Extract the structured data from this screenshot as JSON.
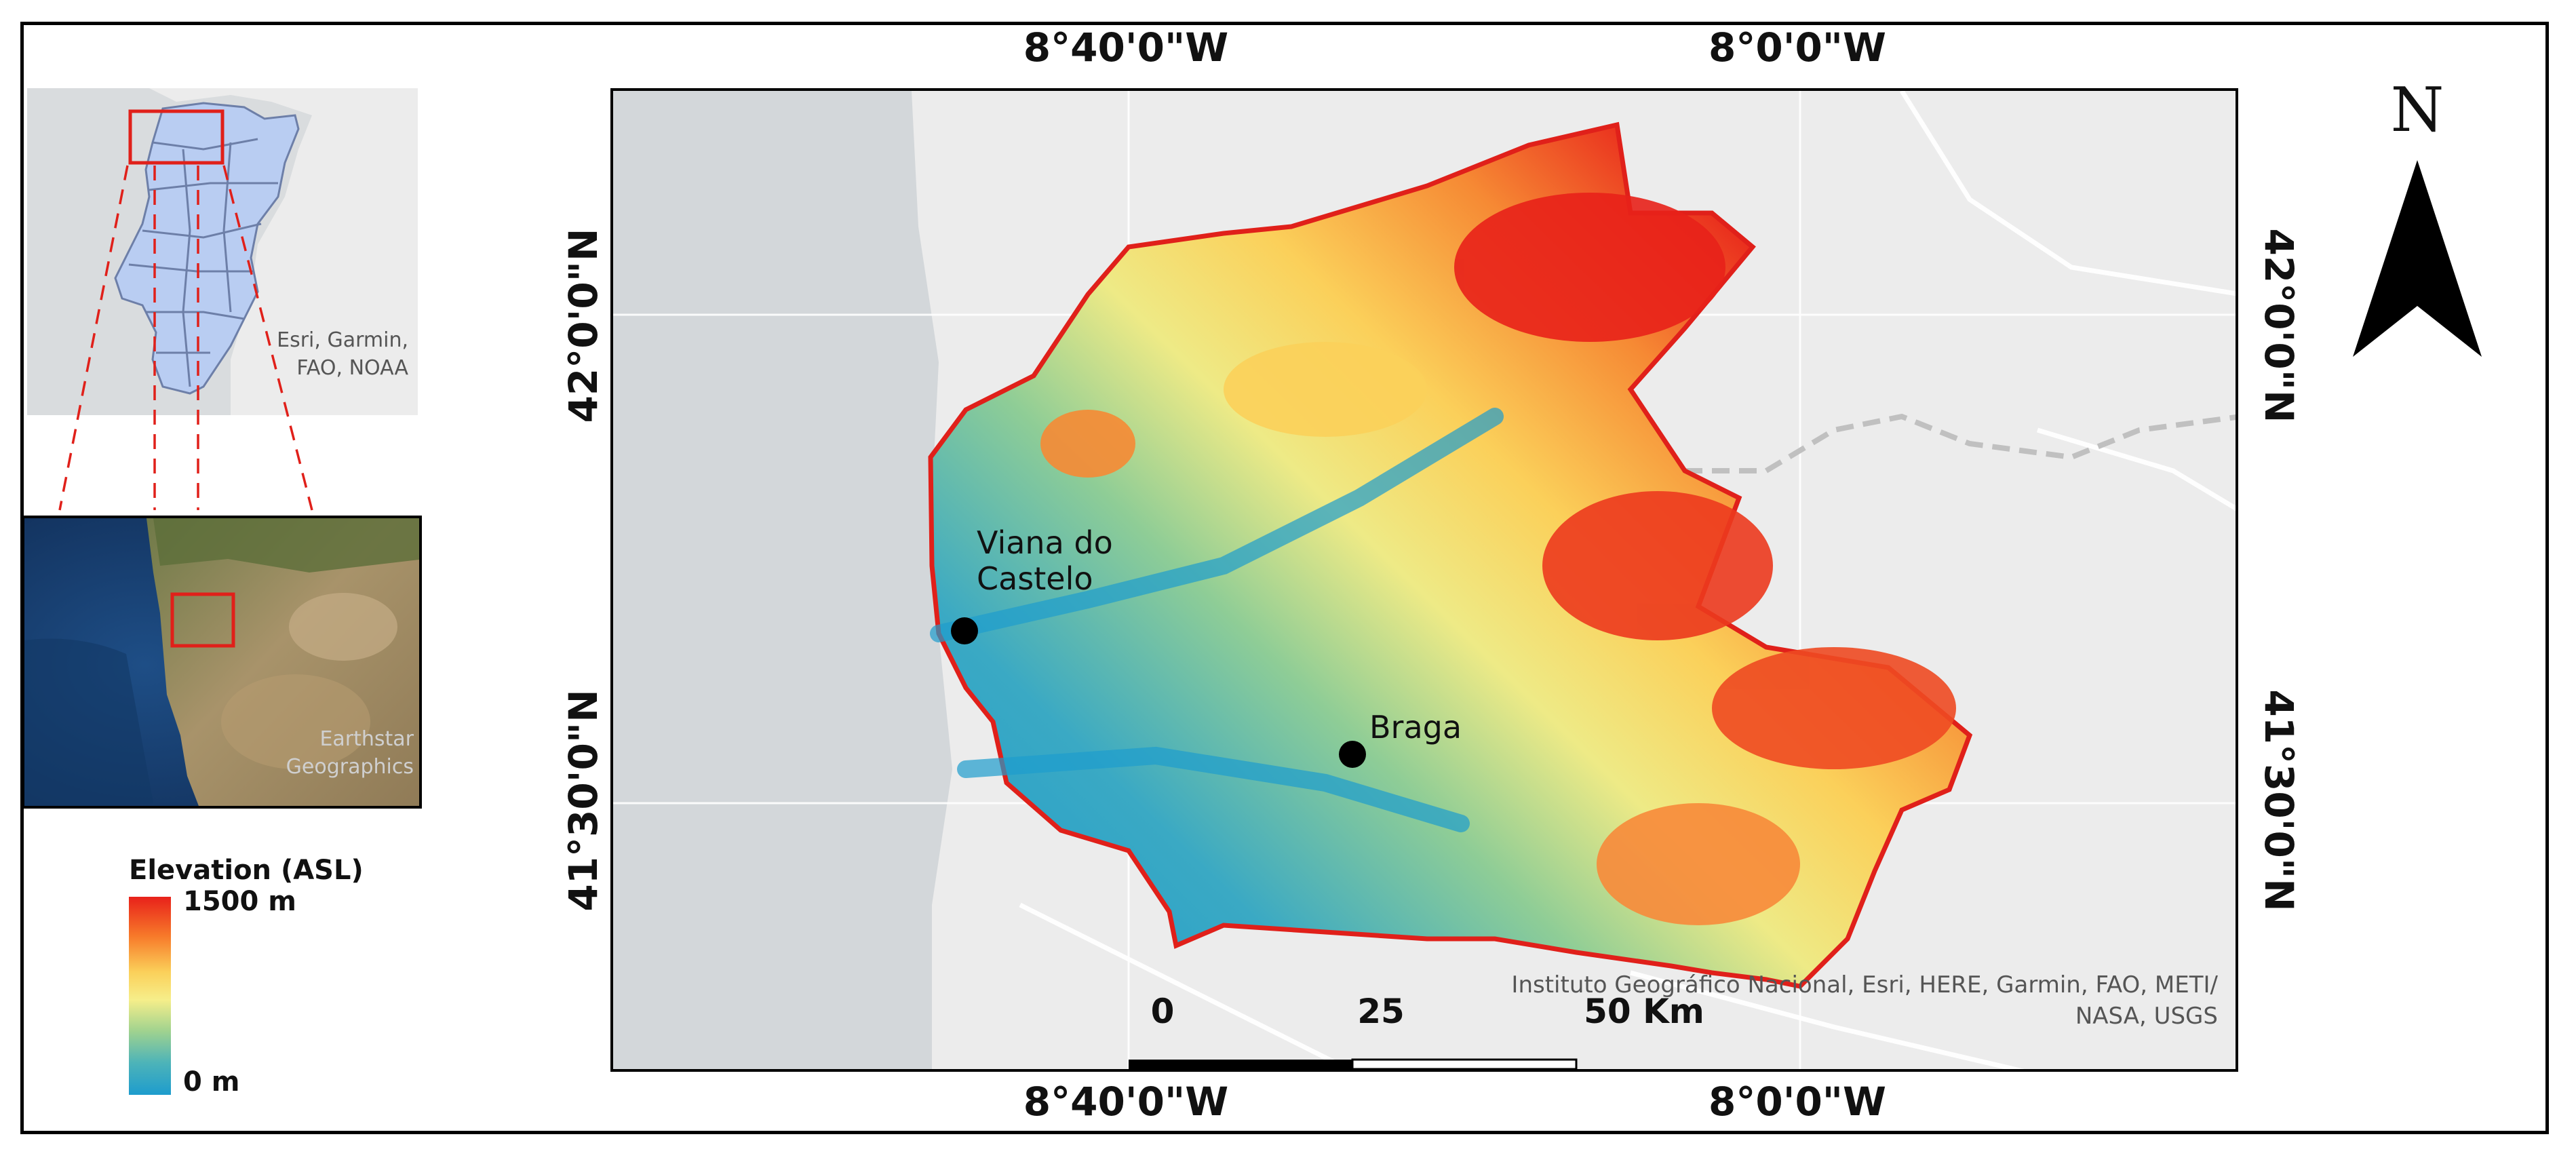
{
  "main_map": {
    "grid_labels_top": [
      "8°40'0\"W",
      "8°0'0\"W"
    ],
    "grid_labels_bottom": [
      "8°40'0\"W",
      "8°0'0\"W"
    ],
    "grid_labels_left": [
      "42°0'0\"N",
      "41°30'0\"N"
    ],
    "grid_labels_right": [
      "42°0'0\"N",
      "41°30'0\"N"
    ],
    "cities": [
      {
        "name": "Viana do Castelo",
        "line1": "Viana do",
        "line2": "Castelo"
      },
      {
        "name": "Braga"
      }
    ],
    "attribution_line1": "Instituto Geográfico Nacional, Esri, HERE, Garmin, FAO, METI/",
    "attribution_line2": "NASA, USGS",
    "scale_bar": {
      "labels": [
        "0",
        "25",
        "50 Km"
      ]
    }
  },
  "inset_portugal": {
    "attribution_line1": "Esri, Garmin,",
    "attribution_line2": "FAO, NOAA"
  },
  "inset_iberia": {
    "attribution_line1": "Earthstar",
    "attribution_line2": "Geographics"
  },
  "legend": {
    "title": "Elevation (ASL)",
    "max_label": "1500 m",
    "min_label": "0 m"
  },
  "north_arrow": {
    "label": "N"
  },
  "colors": {
    "boundary": "#e0201a",
    "high_elevation": "#e8211a",
    "low_elevation": "#1e9ccd",
    "water": "#d3d7da",
    "land": "#ececec",
    "districts_fill": "#b9cdf2"
  }
}
